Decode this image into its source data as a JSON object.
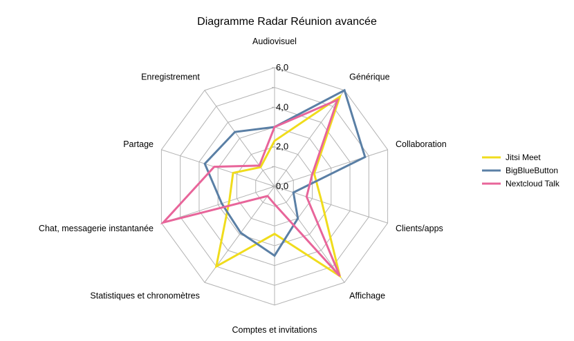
{
  "chart_data": {
    "type": "radar",
    "title": "Diagramme Radar Réunion avancée",
    "categories": [
      "Audiovisuel",
      "Générique",
      "Collaboration",
      "Clients/apps",
      "Affichage",
      "Comptes et invitations",
      "Statistiques et chronomètres",
      "Chat, messagerie instantanée",
      "Partage",
      "Enregistrement"
    ],
    "ticks": [
      "0,0",
      "2,0",
      "4,0",
      "6,0"
    ],
    "range": [
      0,
      6
    ],
    "grid": true,
    "legend_position": "right",
    "series": [
      {
        "name": "Jitsi Meet",
        "color": "#f0dc1c",
        "values": [
          2.3,
          5.6,
          2.1,
          2.5,
          5.6,
          2.4,
          5.0,
          2.4,
          2.2,
          1.2
        ]
      },
      {
        "name": "BigBlueButton",
        "color": "#5a7fa5",
        "values": [
          3.0,
          6.0,
          4.8,
          1.0,
          2.0,
          3.5,
          2.9,
          2.8,
          3.7,
          3.4
        ]
      },
      {
        "name": "Nextcloud Talk",
        "color": "#e8659a",
        "values": [
          3.0,
          5.4,
          2.0,
          1.7,
          5.6,
          0.9,
          0.6,
          5.9,
          3.2,
          1.3
        ]
      }
    ]
  }
}
